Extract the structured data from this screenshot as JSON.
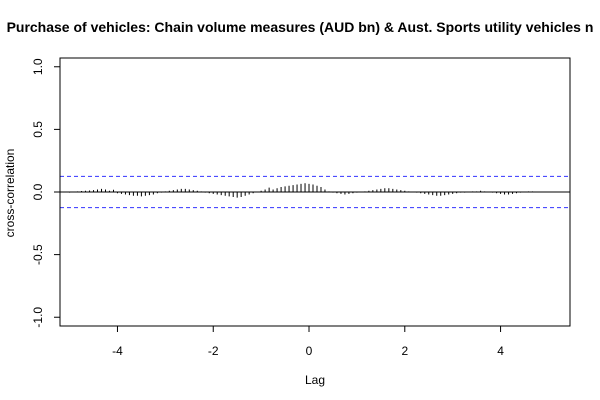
{
  "chart_data": {
    "type": "bar",
    "title": "Purchase of vehicles: Chain volume measures (AUD bn) & Aust. Sports utility vehicles n",
    "xlabel": "Lag",
    "ylabel": "cross-correlation",
    "xlim": [
      -5.2,
      5.45
    ],
    "ylim": [
      -1.07,
      1.07
    ],
    "x_ticks": [
      -4,
      -2,
      0,
      2,
      4
    ],
    "x_tick_labels": [
      "-4",
      "-2",
      "0",
      "2",
      "4"
    ],
    "y_ticks": [
      -1.0,
      -0.5,
      0.0,
      0.5,
      1.0
    ],
    "y_tick_labels": [
      "-1.0",
      "-0.5",
      "0.0",
      "0.5",
      "1.0"
    ],
    "grid": false,
    "confidence_band": 0.125,
    "colors": {
      "bars": "#000000",
      "confidence": "#3333ff",
      "zero": "#000000"
    },
    "x": [
      -5.0,
      -4.917,
      -4.833,
      -4.75,
      -4.667,
      -4.583,
      -4.5,
      -4.417,
      -4.333,
      -4.25,
      -4.167,
      -4.083,
      -4.0,
      -3.917,
      -3.833,
      -3.75,
      -3.667,
      -3.583,
      -3.5,
      -3.417,
      -3.333,
      -3.25,
      -3.167,
      -3.083,
      -3.0,
      -2.917,
      -2.833,
      -2.75,
      -2.667,
      -2.583,
      -2.5,
      -2.417,
      -2.333,
      -2.25,
      -2.167,
      -2.083,
      -2.0,
      -1.917,
      -1.833,
      -1.75,
      -1.667,
      -1.583,
      -1.5,
      -1.417,
      -1.333,
      -1.25,
      -1.167,
      -1.083,
      -1.0,
      -0.917,
      -0.833,
      -0.75,
      -0.667,
      -0.583,
      -0.5,
      -0.417,
      -0.333,
      -0.25,
      -0.167,
      -0.083,
      0.0,
      0.083,
      0.167,
      0.25,
      0.333,
      0.417,
      0.5,
      0.583,
      0.667,
      0.75,
      0.833,
      0.917,
      1.0,
      1.083,
      1.167,
      1.25,
      1.333,
      1.417,
      1.5,
      1.583,
      1.667,
      1.75,
      1.833,
      1.917,
      2.0,
      2.083,
      2.167,
      2.25,
      2.333,
      2.417,
      2.5,
      2.583,
      2.667,
      2.75,
      2.833,
      2.917,
      3.0,
      3.083,
      3.167,
      3.25,
      3.333,
      3.417,
      3.5,
      3.583,
      3.667,
      3.75,
      3.833,
      3.917,
      4.0,
      4.083,
      4.167,
      4.25,
      4.333,
      4.417,
      4.5,
      4.583,
      4.667,
      4.75,
      4.833,
      4.917,
      5.0
    ],
    "values": [
      -0.005,
      0.0,
      0.005,
      0.008,
      0.01,
      0.012,
      0.015,
      0.02,
      0.025,
      0.02,
      0.01,
      0.018,
      -0.01,
      -0.015,
      -0.02,
      -0.025,
      -0.03,
      -0.03,
      -0.035,
      -0.03,
      -0.025,
      -0.02,
      -0.01,
      -0.005,
      0.005,
      0.01,
      0.015,
      0.02,
      0.025,
      0.025,
      0.02,
      0.015,
      0.01,
      0.005,
      -0.005,
      -0.01,
      -0.015,
      -0.02,
      -0.025,
      -0.03,
      -0.035,
      -0.04,
      -0.045,
      -0.04,
      -0.03,
      -0.02,
      -0.01,
      0.0,
      0.01,
      0.02,
      0.035,
      0.02,
      0.03,
      0.04,
      0.045,
      0.05,
      0.055,
      0.06,
      0.065,
      0.07,
      0.065,
      0.06,
      0.05,
      0.04,
      0.02,
      0.005,
      -0.005,
      -0.01,
      -0.015,
      -0.02,
      -0.015,
      -0.01,
      -0.005,
      0.0,
      0.005,
      0.01,
      0.015,
      0.02,
      0.025,
      0.03,
      0.03,
      0.025,
      0.02,
      0.015,
      0.01,
      0.005,
      0.0,
      -0.005,
      -0.01,
      -0.015,
      -0.02,
      -0.025,
      -0.03,
      -0.03,
      -0.025,
      -0.02,
      -0.015,
      -0.01,
      -0.005,
      -0.005,
      0.0,
      0.005,
      0.005,
      0.01,
      0.005,
      0.0,
      -0.005,
      -0.01,
      -0.015,
      -0.02,
      -0.02,
      -0.015,
      -0.01,
      -0.005,
      0.0,
      0.005,
      0.005,
      0.003,
      0.002,
      0.001,
      0.0
    ]
  }
}
